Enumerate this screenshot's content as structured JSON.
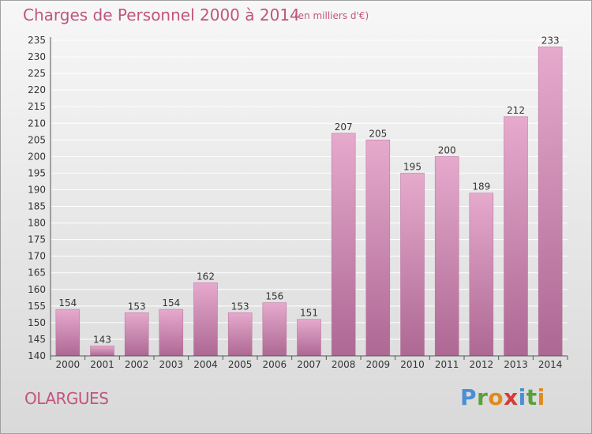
{
  "header": {
    "title": "Charges de Personnel 2000 à 2014",
    "subtitle": "(en milliers d'€)"
  },
  "footer": {
    "city": "OLARGUES",
    "logo": [
      {
        "text": "P",
        "color": "#4a8fd4"
      },
      {
        "text": "r",
        "color": "#5aa03c"
      },
      {
        "text": "o",
        "color": "#e08a1e"
      },
      {
        "text": "x",
        "color": "#d63a3a"
      },
      {
        "text": "i",
        "color": "#4a8fd4"
      },
      {
        "text": "t",
        "color": "#5aa03c"
      },
      {
        "text": "i",
        "color": "#e08a1e"
      }
    ]
  },
  "colors": {
    "accent": "#c0557f",
    "bar_light": "#e4a6cb",
    "bar_dark": "#b06c97"
  },
  "chart_data": {
    "type": "bar",
    "categories": [
      "2000",
      "2001",
      "2002",
      "2003",
      "2004",
      "2005",
      "2006",
      "2007",
      "2008",
      "2009",
      "2010",
      "2011",
      "2012",
      "2013",
      "2014"
    ],
    "values": [
      154,
      143,
      153,
      154,
      162,
      153,
      156,
      151,
      207,
      205,
      195,
      200,
      189,
      212,
      233
    ],
    "ylim": [
      140,
      235
    ],
    "yticks": [
      140,
      145,
      150,
      155,
      160,
      165,
      170,
      175,
      180,
      185,
      190,
      195,
      200,
      205,
      210,
      215,
      220,
      225,
      230,
      235
    ],
    "grid": true,
    "legend": "none"
  }
}
